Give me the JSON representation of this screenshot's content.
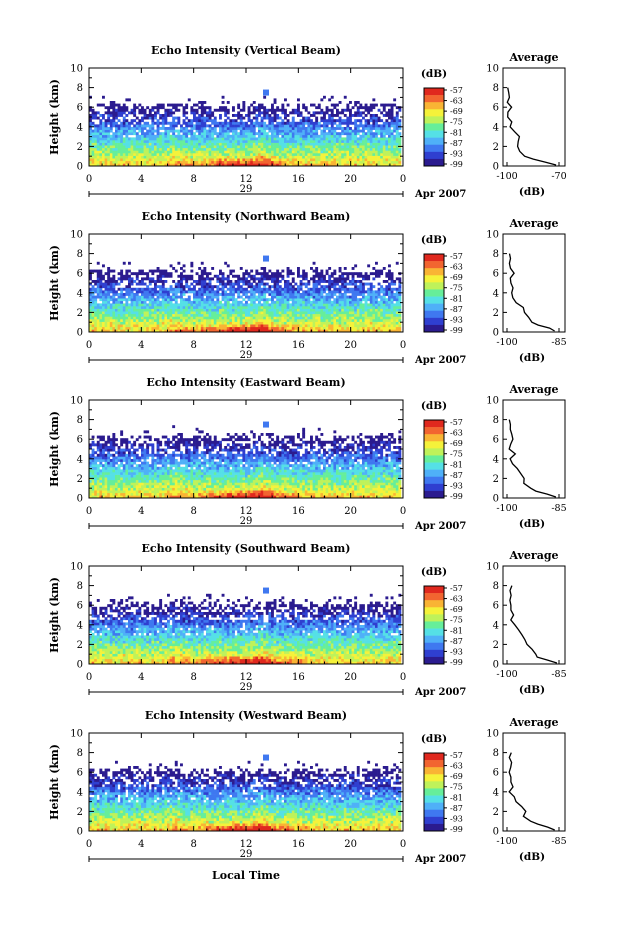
{
  "figure": {
    "xlabel_bottom": "Local Time",
    "date_label": "Apr 2007",
    "day_label": "29"
  },
  "panels": [
    {
      "title": "Echo Intensity (Vertical Beam)",
      "avg_title": "Average",
      "avg_xticks": [
        "-100",
        "-70"
      ]
    },
    {
      "title": "Echo Intensity (Northward Beam)",
      "avg_title": "Average",
      "avg_xticks": [
        "-100",
        "-85"
      ]
    },
    {
      "title": "Echo Intensity (Eastward Beam)",
      "avg_title": "Average",
      "avg_xticks": [
        "-100",
        "-85"
      ]
    },
    {
      "title": "Echo Intensity (Southward Beam)",
      "avg_title": "Average",
      "avg_xticks": [
        "-100",
        "-85"
      ]
    },
    {
      "title": "Echo Intensity (Westward Beam)",
      "avg_title": "Average",
      "avg_xticks": [
        "-100",
        "-85"
      ]
    }
  ],
  "colorbar": {
    "unit_label": "(dB)",
    "ticks": [
      "-57",
      "-63",
      "-69",
      "-75",
      "-81",
      "-87",
      "-93",
      "-99"
    ],
    "colors": [
      "#2b1b8f",
      "#2f3fd0",
      "#3f78f0",
      "#4fb0f8",
      "#55e0e6",
      "#66ee9a",
      "#bff25a",
      "#f5f23a",
      "#f9b434",
      "#f26530",
      "#e0281e"
    ]
  },
  "axes": {
    "ylabel": "Height (km)",
    "yticks": [
      "0",
      "2",
      "4",
      "6",
      "8",
      "10"
    ],
    "xticks": [
      "0",
      "4",
      "8",
      "12",
      "16",
      "20",
      "0"
    ],
    "avg_ylabel": "(dB)"
  },
  "chart_data": [
    {
      "type": "heatmap",
      "title": "Echo Intensity (Vertical Beam)",
      "xlabel": "",
      "ylabel": "Height (km)",
      "xlim": [
        0,
        24
      ],
      "ylim": [
        0,
        10
      ],
      "colorbar": {
        "label": "(dB)",
        "range": [
          -99,
          -57
        ]
      },
      "average_profile": {
        "xlim": [
          -100,
          -70
        ],
        "height_km": [
          0.1,
          0.4,
          0.7,
          1.0,
          1.5,
          2.0,
          2.5,
          3.0,
          3.5,
          4.0,
          4.5,
          5.0,
          5.5,
          6.0,
          6.5,
          7.0,
          7.5,
          8.0
        ],
        "db": [
          -72,
          -78,
          -84,
          -89,
          -92,
          -94,
          -94,
          -93,
          -95,
          -98,
          -97,
          -99,
          -99,
          -98,
          -99,
          -99,
          -99,
          -99
        ]
      }
    },
    {
      "type": "heatmap",
      "title": "Echo Intensity (Northward Beam)",
      "xlabel": "",
      "ylabel": "Height (km)",
      "xlim": [
        0,
        24
      ],
      "ylim": [
        0,
        10
      ],
      "colorbar": {
        "label": "(dB)",
        "range": [
          -99,
          -57
        ]
      },
      "average_profile": {
        "xlim": [
          -100,
          -85
        ],
        "height_km": [
          0.1,
          0.4,
          0.7,
          1.0,
          1.5,
          2.0,
          2.5,
          3.0,
          3.5,
          4.0,
          4.5,
          5.0,
          5.5,
          6.0,
          6.5,
          7.0,
          7.5,
          8.0
        ],
        "db": [
          -86,
          -88,
          -91,
          -93,
          -94,
          -95,
          -95,
          -97,
          -98,
          -99,
          -98,
          -99,
          -99,
          -98,
          -99,
          -99,
          -99,
          -99
        ]
      }
    },
    {
      "type": "heatmap",
      "title": "Echo Intensity (Eastward Beam)",
      "xlabel": "",
      "ylabel": "Height (km)",
      "xlim": [
        0,
        24
      ],
      "ylim": [
        0,
        10
      ],
      "colorbar": {
        "label": "(dB)",
        "range": [
          -99,
          -57
        ]
      },
      "average_profile": {
        "xlim": [
          -100,
          -85
        ],
        "height_km": [
          0.1,
          0.4,
          0.7,
          1.0,
          1.5,
          2.0,
          2.5,
          3.0,
          3.5,
          4.0,
          4.5,
          5.0,
          5.5,
          6.0,
          6.5,
          7.0,
          7.5,
          8.0
        ],
        "db": [
          -86,
          -88,
          -92,
          -93,
          -95,
          -95,
          -96,
          -97,
          -98,
          -99,
          -98,
          -99,
          -99,
          -98,
          -99,
          -99,
          -99,
          -99
        ]
      }
    },
    {
      "type": "heatmap",
      "title": "Echo Intensity (Southward Beam)",
      "xlabel": "",
      "ylabel": "Height (km)",
      "xlim": [
        0,
        24
      ],
      "ylim": [
        0,
        10
      ],
      "colorbar": {
        "label": "(dB)",
        "range": [
          -99,
          -57
        ]
      },
      "average_profile": {
        "xlim": [
          -100,
          -85
        ],
        "height_km": [
          0.1,
          0.4,
          0.7,
          1.0,
          1.5,
          2.0,
          2.5,
          3.0,
          3.5,
          4.0,
          4.5,
          5.0,
          5.5,
          6.0,
          6.5,
          7.0,
          7.5,
          8.0
        ],
        "db": [
          -86,
          -88,
          -91,
          -92,
          -93,
          -94,
          -95,
          -96,
          -97,
          -98,
          -99,
          -98,
          -99,
          -99,
          -99,
          -99,
          -99,
          -99
        ]
      }
    },
    {
      "type": "heatmap",
      "title": "Echo Intensity (Westward Beam)",
      "xlabel": "Local Time",
      "ylabel": "Height (km)",
      "xlim": [
        0,
        24
      ],
      "ylim": [
        0,
        10
      ],
      "colorbar": {
        "label": "(dB)",
        "range": [
          -99,
          -57
        ]
      },
      "average_profile": {
        "xlim": [
          -100,
          -85
        ],
        "height_km": [
          0.1,
          0.4,
          0.7,
          1.0,
          1.5,
          2.0,
          2.5,
          3.0,
          3.5,
          4.0,
          4.5,
          5.0,
          5.5,
          6.0,
          6.5,
          7.0,
          7.5,
          8.0
        ],
        "db": [
          -86,
          -88,
          -91,
          -93,
          -95,
          -95,
          -96,
          -97,
          -98,
          -99,
          -98,
          -99,
          -99,
          -99,
          -99,
          -99,
          -99,
          -99
        ]
      }
    }
  ]
}
